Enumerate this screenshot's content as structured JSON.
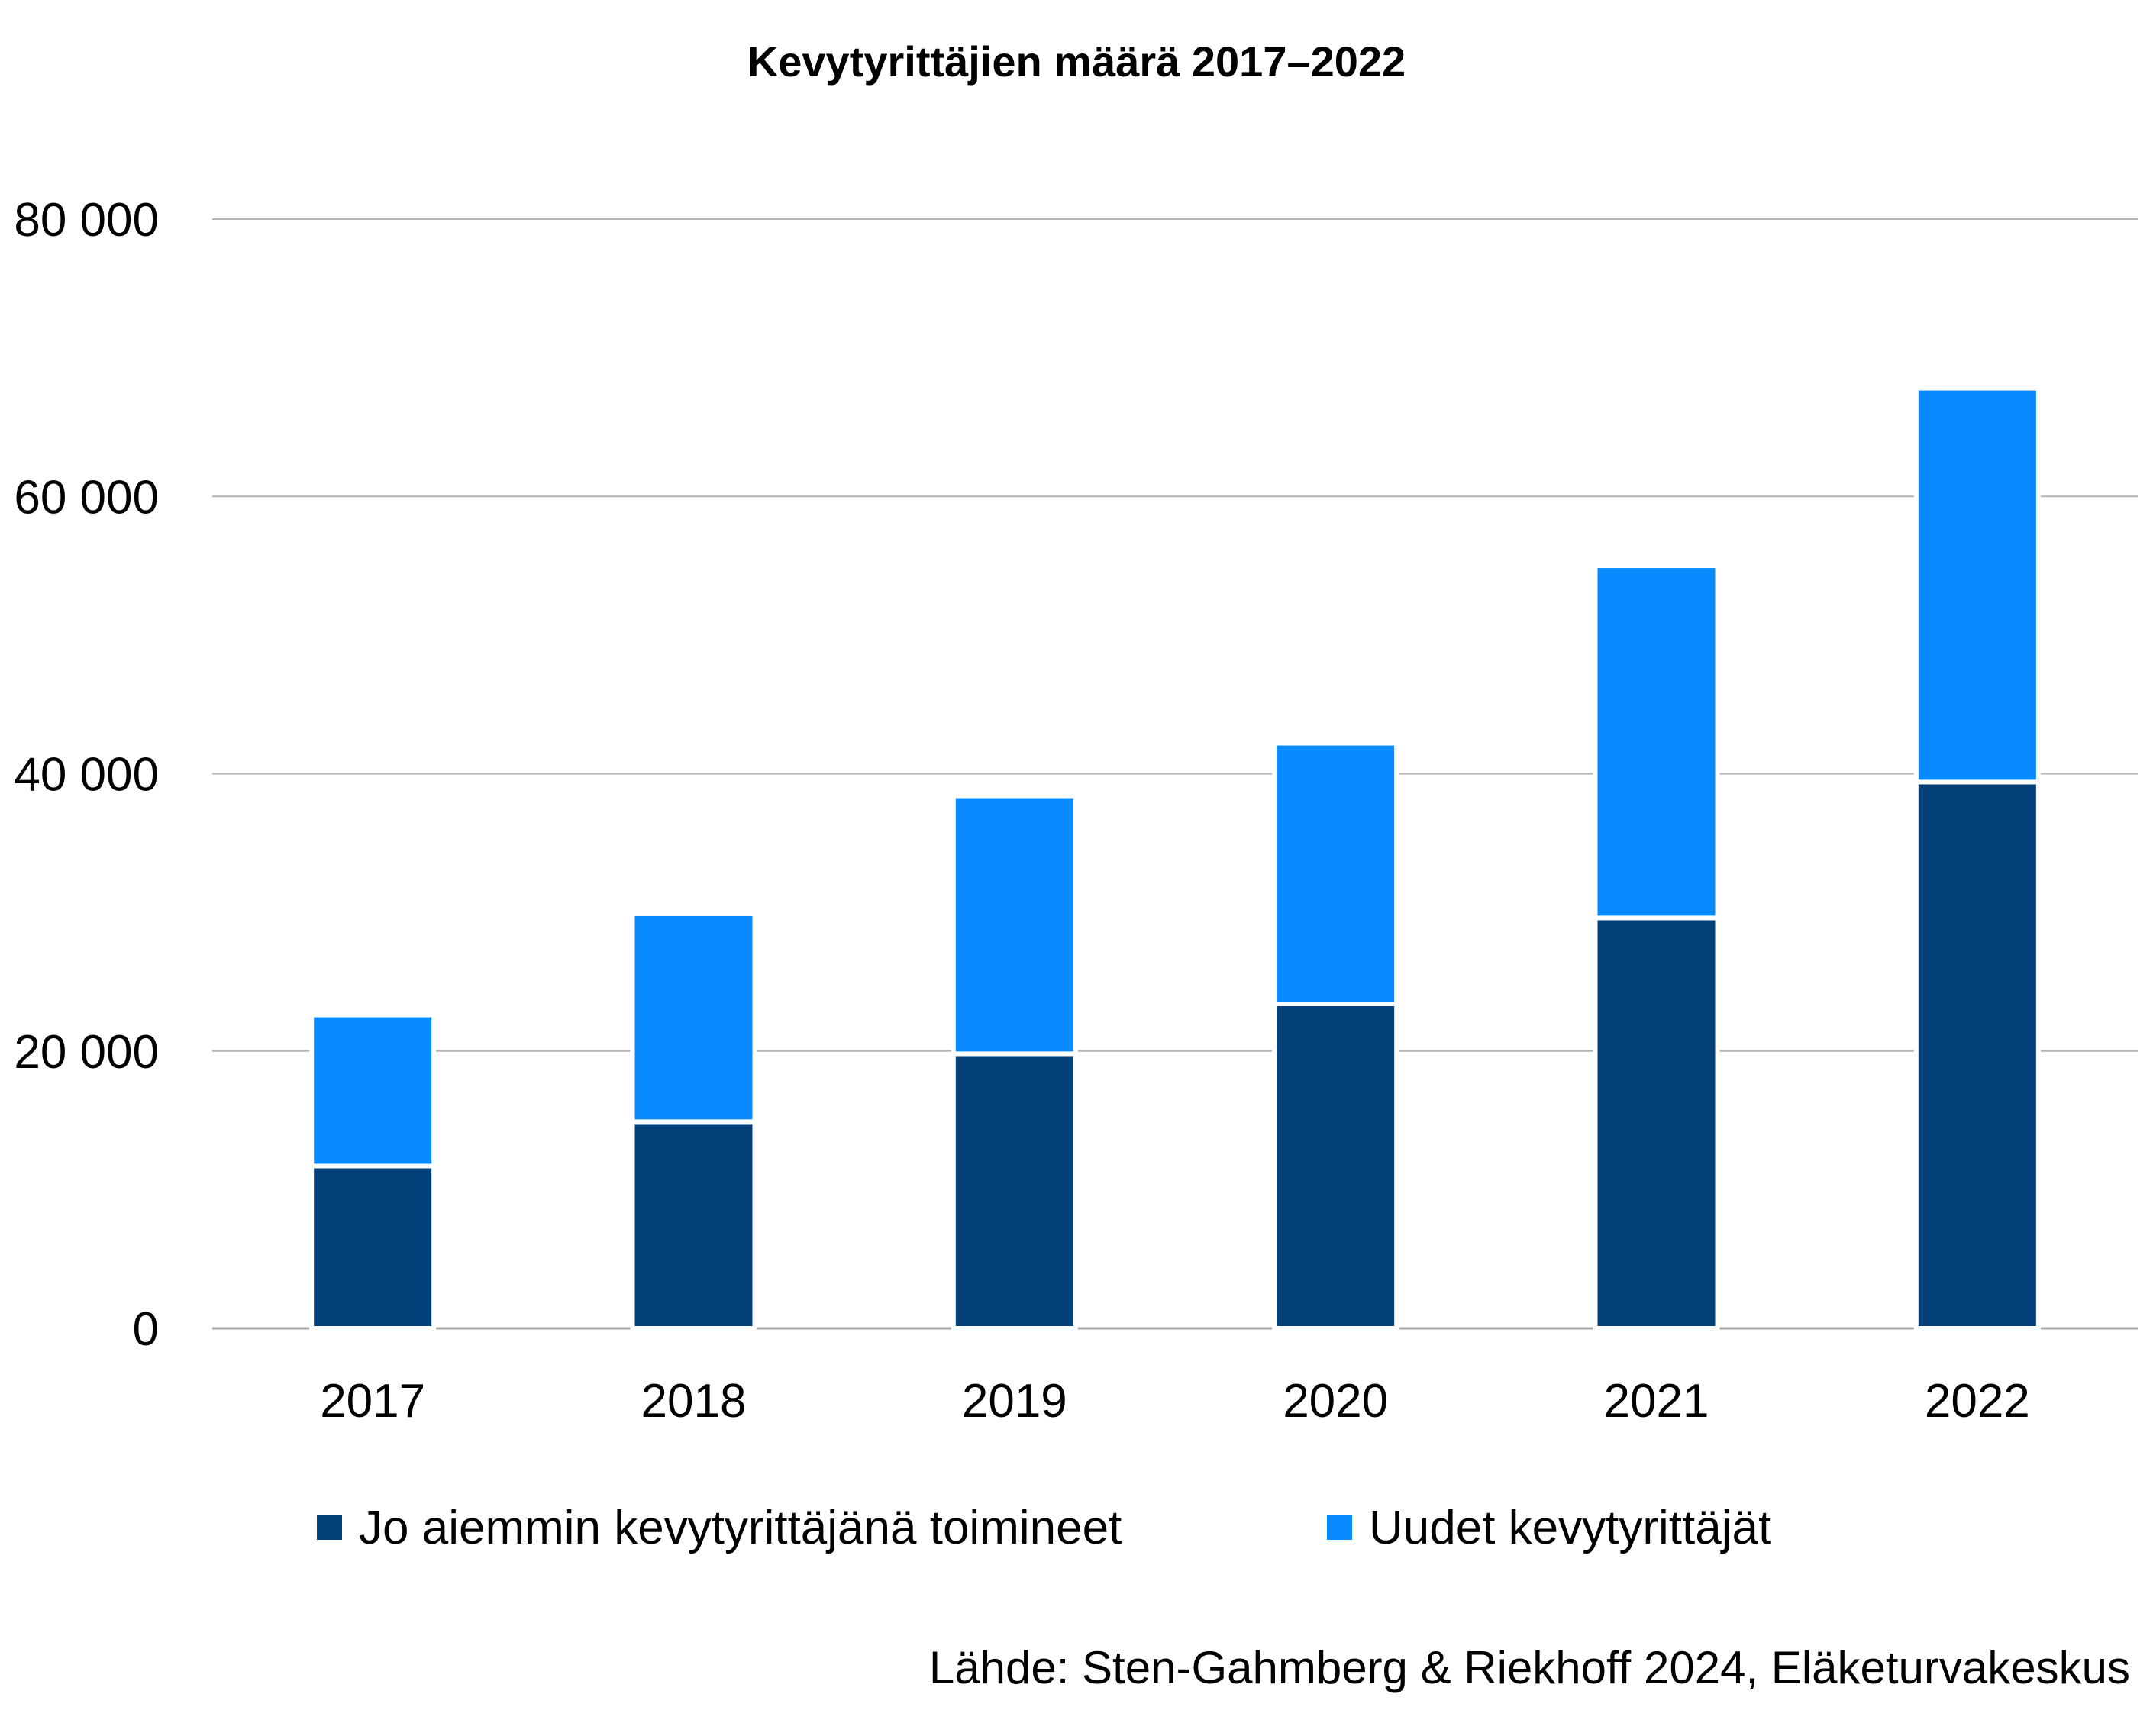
{
  "chart_data": {
    "type": "bar",
    "stacked": true,
    "title": "Kevytyrittäjien määrä 2017–2022",
    "categories": [
      "2017",
      "2018",
      "2019",
      "2020",
      "2021",
      "2022"
    ],
    "series": [
      {
        "name": "Jo aiemmin kevytyrittäjänä toimineet",
        "color": "#03407a",
        "values": [
          11700,
          14900,
          19800,
          23400,
          29600,
          39400
        ]
      },
      {
        "name": "Uudet kevytyrittäjät",
        "color": "#0a8aff",
        "values": [
          10900,
          15000,
          18600,
          18800,
          25400,
          28400
        ]
      }
    ],
    "ylim": [
      0,
      80000
    ],
    "yticks": [
      0,
      20000,
      40000,
      60000,
      80000
    ],
    "ytick_labels": [
      "0",
      "20 000",
      "40 000",
      "60 000",
      "80 000"
    ],
    "xlabel": "",
    "ylabel": "",
    "grid": true,
    "legend_position": "bottom",
    "source": "Lähde: Sten-Gahmberg & Riekhoff 2024, Eläketurvakeskus"
  }
}
